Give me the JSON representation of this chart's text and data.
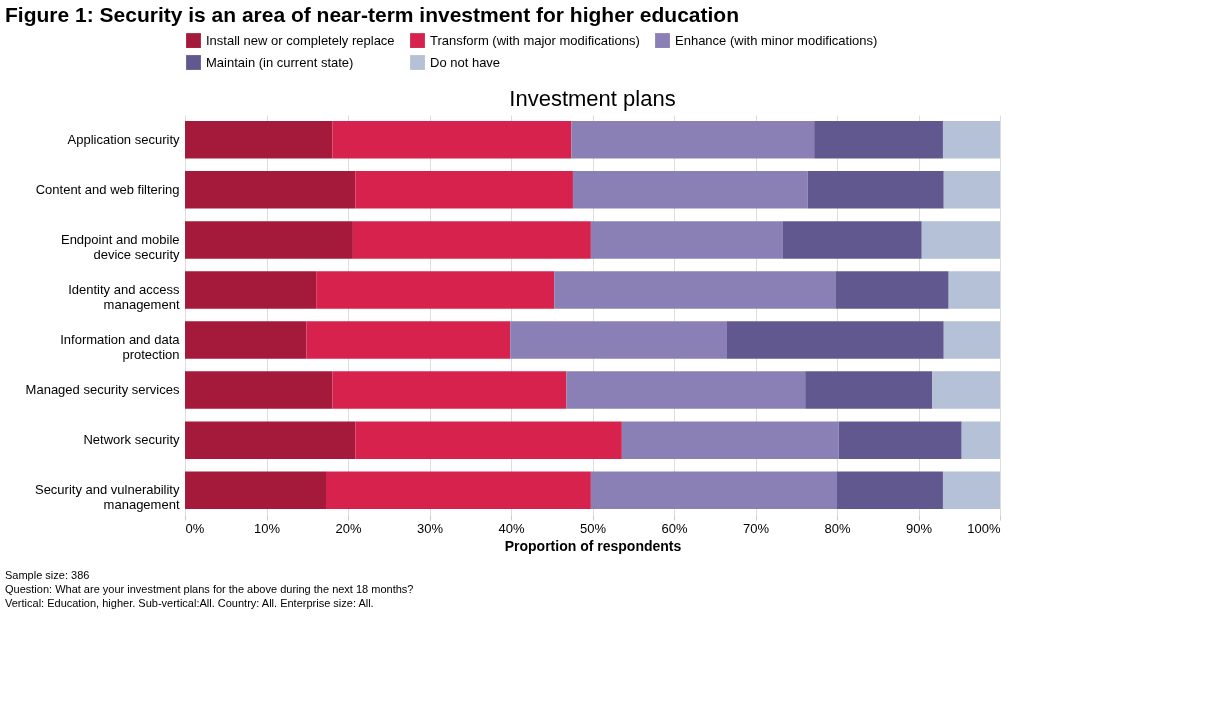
{
  "chart_data": {
    "type": "bar",
    "orientation": "horizontal",
    "stacked": true,
    "title": "Figure 1: Security is an area of near-term investment for higher education",
    "subtitle": "Investment plans",
    "xlabel": "Proportion of respondents",
    "categories": [
      "Application security",
      "Content and web filtering",
      "Endpoint and mobile\ndevice security",
      "Identity and access\nmanagement",
      "Information and data\nprotection",
      "Managed security services",
      "Network security",
      "Security and vulnerability\nmanagement"
    ],
    "series": [
      {
        "name": "Install new or completely replace",
        "color": "#a51a3a",
        "values": [
          18.1,
          20.9,
          20.6,
          16.1,
          14.9,
          18.1,
          20.9,
          17.3
        ]
      },
      {
        "name": "Transform (with major modifications)",
        "color": "#d8224e",
        "values": [
          29.3,
          26.7,
          29.2,
          29.2,
          25.0,
          28.7,
          32.7,
          32.5
        ]
      },
      {
        "name": "Enhance (with minor modifications)",
        "color": "#8a80b6",
        "values": [
          29.8,
          28.8,
          23.5,
          34.5,
          26.6,
          29.3,
          26.6,
          30.2
        ]
      },
      {
        "name": "Maintain (in current state)",
        "color": "#625890",
        "values": [
          15.8,
          16.7,
          17.1,
          13.9,
          26.6,
          15.6,
          15.1,
          13.0
        ]
      },
      {
        "name": "Do not have",
        "color": "#b4c1d6",
        "values": [
          7.0,
          6.9,
          9.6,
          6.3,
          6.9,
          8.3,
          4.7,
          7.0
        ]
      }
    ],
    "xlim": [
      0,
      100
    ],
    "xticks": [
      {
        "value": 0,
        "label": "0%"
      },
      {
        "value": 10,
        "label": "10%"
      },
      {
        "value": 20,
        "label": "20%"
      },
      {
        "value": 30,
        "label": "30%"
      },
      {
        "value": 40,
        "label": "40%"
      },
      {
        "value": 50,
        "label": "50%"
      },
      {
        "value": 60,
        "label": "60%"
      },
      {
        "value": 70,
        "label": "70%"
      },
      {
        "value": 80,
        "label": "80%"
      },
      {
        "value": 90,
        "label": "90%"
      },
      {
        "value": 100,
        "label": "100%"
      }
    ],
    "grid": "x",
    "legend": "top",
    "annotations": [
      "Sample size: 386",
      "Question: What are your investment plans for the above during the next 18 months?",
      "Vertical: Education, higher.  Sub-vertical:All.  Country: All. Enterprise size: All."
    ]
  }
}
